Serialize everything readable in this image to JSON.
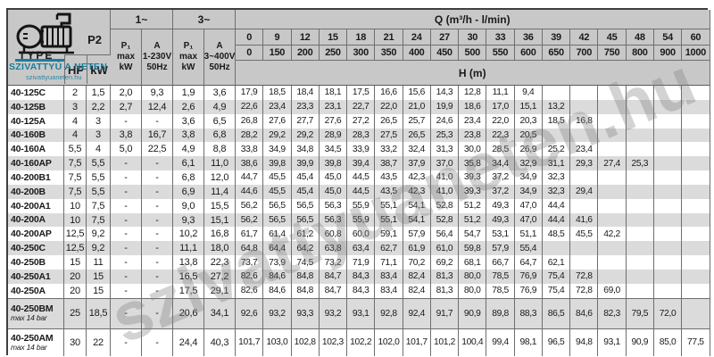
{
  "logo": {
    "type_label": "TYPE",
    "p2_label": "P2",
    "brand_name": "SZIVATTYÚ A NETEN",
    "brand_url": "szivattyuaneten.hu"
  },
  "watermark_text": "szivattyuaneten.hu",
  "header": {
    "hp": "HP",
    "kw": "kW",
    "one_phase": "1~",
    "three_phase": "3~",
    "p1_max_1": "P₁\nmax\nkW",
    "a_230": "A\n1-230V\n50Hz",
    "p1_max_3": "P₁\nmax\nkW",
    "a_400": "A\n3~400V\n50Hz",
    "q_title": "Q (m³/h - l/min)",
    "h_title": "H (m)",
    "q_m3h": [
      "0",
      "9",
      "12",
      "15",
      "18",
      "21",
      "24",
      "27",
      "30",
      "33",
      "36",
      "39",
      "42",
      "45",
      "48",
      "54",
      "60"
    ],
    "q_lmin": [
      "0",
      "150",
      "200",
      "250",
      "300",
      "350",
      "400",
      "450",
      "500",
      "550",
      "600",
      "650",
      "700",
      "750",
      "800",
      "900",
      "1000"
    ]
  },
  "rows": [
    {
      "type": "40-125C",
      "note": "",
      "hp": "2",
      "kw": "1,5",
      "p1_1": "2,0",
      "a1": "9,3",
      "p1_3": "1,9",
      "a3": "3,6",
      "h": [
        "17,9",
        "18,5",
        "18,4",
        "18,1",
        "17,5",
        "16,6",
        "15,6",
        "14,3",
        "12,8",
        "11,1",
        "9,4"
      ]
    },
    {
      "type": "40-125B",
      "note": "",
      "hp": "3",
      "kw": "2,2",
      "p1_1": "2,7",
      "a1": "12,4",
      "p1_3": "2,6",
      "a3": "4,9",
      "h": [
        "22,6",
        "23,4",
        "23,3",
        "23,1",
        "22,7",
        "22,0",
        "21,0",
        "19,9",
        "18,6",
        "17,0",
        "15,1",
        "13,2"
      ]
    },
    {
      "type": "40-125A",
      "note": "",
      "hp": "4",
      "kw": "3",
      "p1_1": "-",
      "a1": "-",
      "p1_3": "3,6",
      "a3": "6,5",
      "h": [
        "26,8",
        "27,6",
        "27,7",
        "27,6",
        "27,2",
        "26,5",
        "25,7",
        "24,6",
        "23,4",
        "22,0",
        "20,3",
        "18,5",
        "16,8"
      ]
    },
    {
      "type": "40-160B",
      "note": "",
      "hp": "4",
      "kw": "3",
      "p1_1": "3,8",
      "a1": "16,7",
      "p1_3": "3,8",
      "a3": "6,8",
      "h": [
        "28,2",
        "29,2",
        "29,2",
        "28,9",
        "28,3",
        "27,5",
        "26,5",
        "25,3",
        "23,8",
        "22,3",
        "20,5"
      ]
    },
    {
      "type": "40-160A",
      "note": "",
      "hp": "5,5",
      "kw": "4",
      "p1_1": "5,0",
      "a1": "22,5",
      "p1_3": "4,9",
      "a3": "8,8",
      "h": [
        "33,8",
        "34,9",
        "34,8",
        "34,5",
        "33,9",
        "33,2",
        "32,4",
        "31,3",
        "30,0",
        "28,5",
        "26,9",
        "25,2",
        "23,4"
      ]
    },
    {
      "type": "40-160AP",
      "note": "",
      "hp": "7,5",
      "kw": "5,5",
      "p1_1": "-",
      "a1": "-",
      "p1_3": "6,1",
      "a3": "11,0",
      "h": [
        "38,6",
        "39,8",
        "39,9",
        "39,8",
        "39,4",
        "38,7",
        "37,9",
        "37,0",
        "35,8",
        "34,4",
        "32,9",
        "31,1",
        "29,3",
        "27,4",
        "25,3"
      ]
    },
    {
      "type": "40-200B1",
      "note": "",
      "hp": "7,5",
      "kw": "5,5",
      "p1_1": "-",
      "a1": "-",
      "p1_3": "6,8",
      "a3": "12,0",
      "h": [
        "44,7",
        "45,5",
        "45,4",
        "45,0",
        "44,5",
        "43,5",
        "42,3",
        "41,0",
        "39,3",
        "37,2",
        "34,9",
        "32,3"
      ]
    },
    {
      "type": "40-200B",
      "note": "",
      "hp": "7,5",
      "kw": "5,5",
      "p1_1": "-",
      "a1": "-",
      "p1_3": "6,9",
      "a3": "11,4",
      "h": [
        "44,6",
        "45,5",
        "45,4",
        "45,0",
        "44,5",
        "43,5",
        "42,3",
        "41,0",
        "39,3",
        "37,2",
        "34,9",
        "32,3",
        "29,4"
      ]
    },
    {
      "type": "40-200A1",
      "note": "",
      "hp": "10",
      "kw": "7,5",
      "p1_1": "-",
      "a1": "-",
      "p1_3": "9,0",
      "a3": "15,5",
      "h": [
        "56,2",
        "56,5",
        "56,5",
        "56,3",
        "55,9",
        "55,1",
        "54,1",
        "52,8",
        "51,2",
        "49,3",
        "47,0",
        "44,4"
      ]
    },
    {
      "type": "40-200A",
      "note": "",
      "hp": "10",
      "kw": "7,5",
      "p1_1": "-",
      "a1": "-",
      "p1_3": "9,3",
      "a3": "15,1",
      "h": [
        "56,2",
        "56,5",
        "56,5",
        "56,3",
        "55,9",
        "55,1",
        "54,1",
        "52,8",
        "51,2",
        "49,3",
        "47,0",
        "44,4",
        "41,6"
      ]
    },
    {
      "type": "40-200AP",
      "note": "",
      "hp": "12,5",
      "kw": "9,2",
      "p1_1": "-",
      "a1": "-",
      "p1_3": "10,2",
      "a3": "16,8",
      "h": [
        "61,7",
        "61,4",
        "61,2",
        "60,8",
        "60,0",
        "59,1",
        "57,9",
        "56,4",
        "54,7",
        "53,1",
        "51,1",
        "48,5",
        "45,5",
        "42,2"
      ]
    },
    {
      "type": "40-250C",
      "note": "",
      "hp": "12,5",
      "kw": "9,2",
      "p1_1": "-",
      "a1": "-",
      "p1_3": "11,1",
      "a3": "18,0",
      "h": [
        "64,8",
        "64,4",
        "64,2",
        "63,8",
        "63,4",
        "62,7",
        "61,9",
        "61,0",
        "59,8",
        "57,9",
        "55,4"
      ]
    },
    {
      "type": "40-250B",
      "note": "",
      "hp": "15",
      "kw": "11",
      "p1_1": "-",
      "a1": "-",
      "p1_3": "13,8",
      "a3": "22,3",
      "h": [
        "73,7",
        "73,9",
        "74,5",
        "73,2",
        "71,9",
        "71,1",
        "70,2",
        "69,2",
        "68,1",
        "66,7",
        "64,7",
        "62,1"
      ]
    },
    {
      "type": "40-250A1",
      "note": "",
      "hp": "20",
      "kw": "15",
      "p1_1": "-",
      "a1": "-",
      "p1_3": "16,5",
      "a3": "27,2",
      "h": [
        "82,6",
        "84,6",
        "84,8",
        "84,7",
        "84,3",
        "83,4",
        "82,4",
        "81,3",
        "80,0",
        "78,5",
        "76,9",
        "75,4",
        "72,8"
      ]
    },
    {
      "type": "40-250A",
      "note": "",
      "hp": "20",
      "kw": "15",
      "p1_1": "-",
      "a1": "-",
      "p1_3": "17,5",
      "a3": "29,1",
      "h": [
        "82,6",
        "84,6",
        "84,8",
        "84,7",
        "84,3",
        "83,4",
        "82,4",
        "81,3",
        "80,0",
        "78,5",
        "76,9",
        "75,4",
        "72,8",
        "69,0"
      ]
    },
    {
      "type": "40-250BM",
      "note": "max 14 bar",
      "hp": "25",
      "kw": "18,5",
      "p1_1": "-",
      "a1": "-",
      "p1_3": "20,6",
      "a3": "34,1",
      "h": [
        "92,6",
        "93,2",
        "93,3",
        "93,2",
        "93,1",
        "92,8",
        "92,4",
        "91,7",
        "90,9",
        "89,8",
        "88,3",
        "86,5",
        "84,6",
        "82,3",
        "79,5",
        "72,0"
      ]
    },
    {
      "type": "40-250AM",
      "note": "max 14 bar",
      "hp": "30",
      "kw": "22",
      "p1_1": "-",
      "a1": "-",
      "p1_3": "24,4",
      "a3": "40,3",
      "h": [
        "101,7",
        "103,0",
        "102,8",
        "102,3",
        "102,2",
        "102,0",
        "101,7",
        "101,2",
        "100,4",
        "99,4",
        "98,1",
        "96,5",
        "94,8",
        "93,1",
        "90,9",
        "85,0",
        "77,5"
      ]
    }
  ],
  "colors": {
    "teal": "#1e7d9e",
    "header_bg": "#c8c8c8",
    "stripe_bg": "#dbdbdb",
    "border": "#6e6e6e"
  }
}
